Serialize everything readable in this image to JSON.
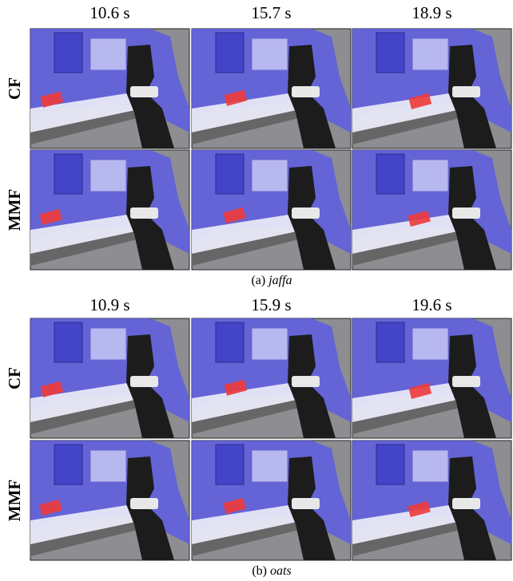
{
  "panels": [
    {
      "times": [
        "10.6 s",
        "15.7 s",
        "18.9 s"
      ],
      "rows": [
        "CF",
        "MMF"
      ],
      "caption_label": "(a)",
      "caption_name": "jaffa"
    },
    {
      "times": [
        "10.9 s",
        "15.9 s",
        "19.6 s"
      ],
      "rows": [
        "CF",
        "MMF"
      ],
      "caption_label": "(b)",
      "caption_name": "oats"
    }
  ]
}
